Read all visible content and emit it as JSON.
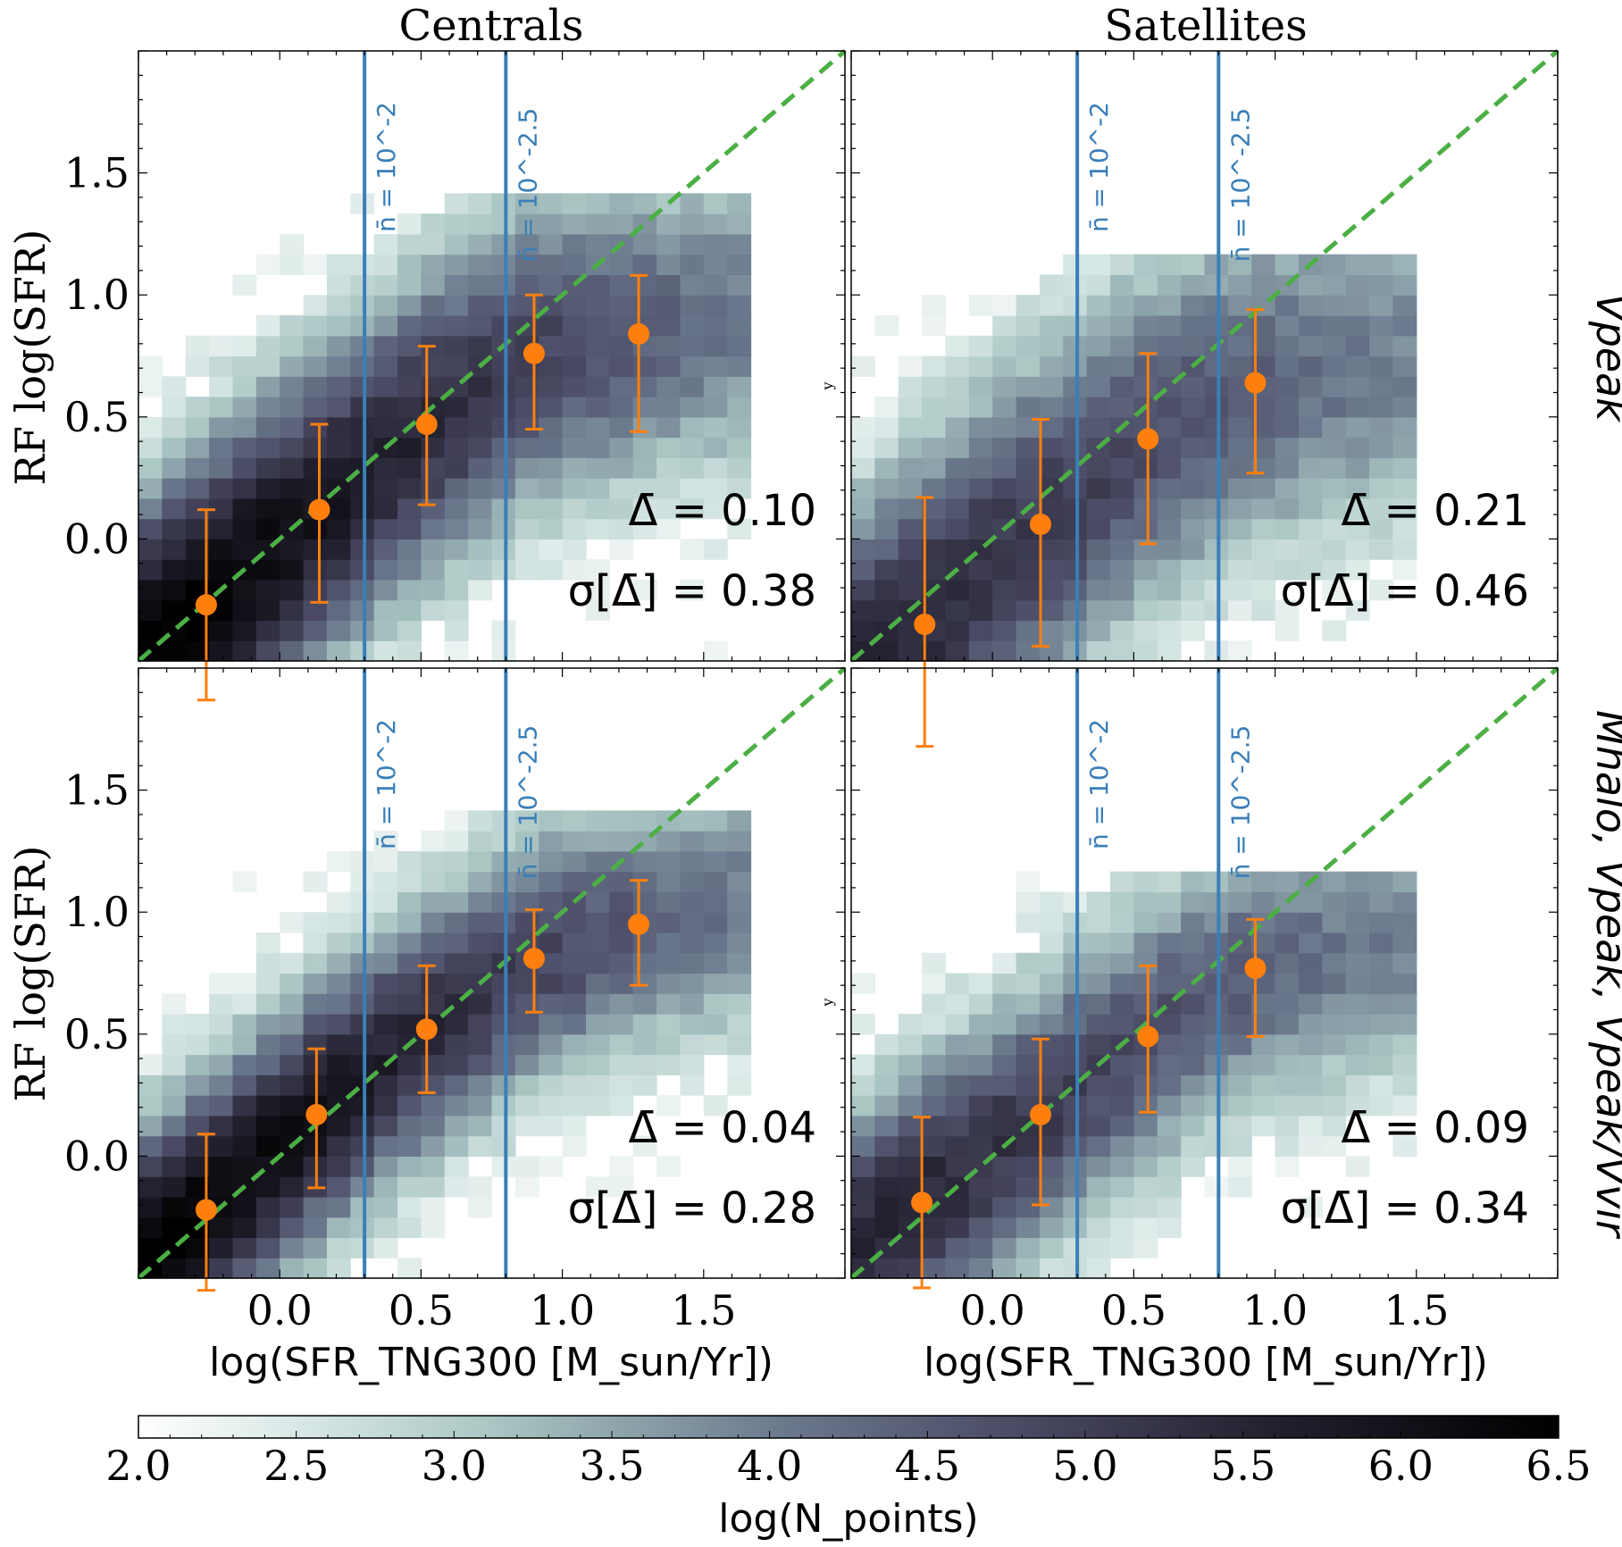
{
  "figure": {
    "column_titles": [
      "Centrals",
      "Satellites"
    ],
    "row_titles": [
      "Vpeak",
      "Mhalo, Vpeak, Vpeak/Vvir"
    ],
    "x_label": "log(SFR_TNG300 [M_sun/Yr])",
    "y_label": "RF log(SFR)",
    "y_label_small": "y",
    "density_label": "log(N_points)",
    "vline_labels": [
      "n̄ = 10^-2",
      "n̄ = 10^-2.5"
    ]
  },
  "colors": {
    "vline": "#3a7fb8",
    "diagonal": "#4caf45",
    "points": "#ff7f0e",
    "cmap_low": "#ffffff",
    "cmap_mid1": "#a9c6c3",
    "cmap_mid2": "#6c7a8e",
    "cmap_mid3": "#3e3c56",
    "cmap_high": "#000000"
  },
  "chart_data": [
    {
      "type": "heatmap",
      "panel": "Centrals / Vpeak",
      "xlim": [
        -0.5,
        2.0
      ],
      "ylim": [
        -0.5,
        2.0
      ],
      "xticks": [
        0.0,
        0.5,
        1.0,
        1.5
      ],
      "yticks": [
        0.0,
        0.5,
        1.0,
        1.5
      ],
      "vlines": [
        0.3,
        0.8
      ],
      "diagonal": "y = x",
      "points": {
        "x": [
          -0.26,
          0.14,
          0.52,
          0.9,
          1.27
        ],
        "y": [
          -0.27,
          0.12,
          0.47,
          0.76,
          0.84
        ],
        "yerr_low": [
          0.39,
          0.38,
          0.33,
          0.31,
          0.4
        ],
        "yerr_high": [
          0.39,
          0.35,
          0.32,
          0.24,
          0.24
        ]
      },
      "stats": {
        "delta_label": "Δ̄ =",
        "delta": "0.10",
        "sigma_label": "σ[Δ̄] =",
        "sigma": "0.38"
      }
    },
    {
      "type": "heatmap",
      "panel": "Satellites / Vpeak",
      "xlim": [
        -0.5,
        2.0
      ],
      "ylim": [
        -0.5,
        2.0
      ],
      "xticks": [
        0.0,
        0.5,
        1.0,
        1.5
      ],
      "yticks": [
        0.0,
        0.5,
        1.0,
        1.5
      ],
      "vlines": [
        0.3,
        0.8
      ],
      "diagonal": "y = x",
      "points": {
        "x": [
          -0.24,
          0.17,
          0.55,
          0.93
        ],
        "y": [
          -0.35,
          0.06,
          0.41,
          0.64
        ],
        "yerr_low": [
          0.5,
          0.5,
          0.43,
          0.37
        ],
        "yerr_high": [
          0.52,
          0.43,
          0.35,
          0.3
        ]
      },
      "stats": {
        "delta_label": "Δ̄ =",
        "delta": "0.21",
        "sigma_label": "σ[Δ̄] =",
        "sigma": "0.46"
      }
    },
    {
      "type": "heatmap",
      "panel": "Centrals / Mhalo, Vpeak, Vpeak/Vvir",
      "xlim": [
        -0.5,
        2.0
      ],
      "ylim": [
        -0.5,
        2.0
      ],
      "xticks": [
        0.0,
        0.5,
        1.0,
        1.5
      ],
      "yticks": [
        0.0,
        0.5,
        1.0,
        1.5
      ],
      "vlines": [
        0.3,
        0.8
      ],
      "diagonal": "y = x",
      "points": {
        "x": [
          -0.26,
          0.13,
          0.52,
          0.9,
          1.27
        ],
        "y": [
          -0.22,
          0.17,
          0.52,
          0.81,
          0.95
        ],
        "yerr_low": [
          0.33,
          0.3,
          0.26,
          0.22,
          0.25
        ],
        "yerr_high": [
          0.31,
          0.27,
          0.26,
          0.2,
          0.18
        ]
      },
      "stats": {
        "delta_label": "Δ̄ =",
        "delta": "0.04",
        "sigma_label": "σ[Δ̄] =",
        "sigma": "0.28"
      }
    },
    {
      "type": "heatmap",
      "panel": "Satellites / Mhalo, Vpeak, Vpeak/Vvir",
      "xlim": [
        -0.5,
        2.0
      ],
      "ylim": [
        -0.5,
        2.0
      ],
      "xticks": [
        0.0,
        0.5,
        1.0,
        1.5
      ],
      "yticks": [
        0.0,
        0.5,
        1.0,
        1.5
      ],
      "vlines": [
        0.3,
        0.8
      ],
      "diagonal": "y = x",
      "points": {
        "x": [
          -0.25,
          0.17,
          0.55,
          0.93
        ],
        "y": [
          -0.19,
          0.17,
          0.49,
          0.77
        ],
        "yerr_low": [
          0.35,
          0.37,
          0.31,
          0.28
        ],
        "yerr_high": [
          0.35,
          0.31,
          0.29,
          0.2
        ]
      },
      "stats": {
        "delta_label": "Δ̄ =",
        "delta": "0.09",
        "sigma_label": "σ[Δ̄] =",
        "sigma": "0.34"
      }
    }
  ],
  "colorbar": {
    "min": 2.0,
    "max": 6.5,
    "ticks": [
      "2.0",
      "2.5",
      "3.0",
      "3.5",
      "4.0",
      "4.5",
      "5.0",
      "5.5",
      "6.0",
      "6.5"
    ]
  }
}
